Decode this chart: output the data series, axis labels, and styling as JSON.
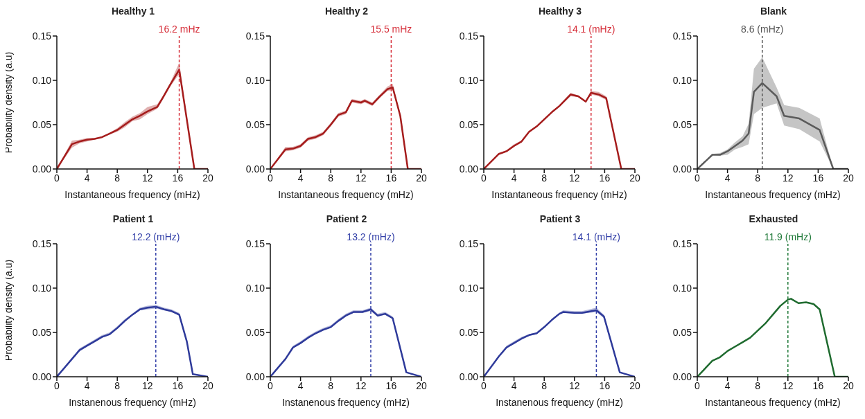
{
  "chart_data": [
    {
      "type": "line",
      "title": "Healthy 1",
      "xlabel": "Instantaneous frequency (mHz)",
      "ylabel": "Probability density (a.u)",
      "xlim": [
        0,
        20
      ],
      "ylim": [
        0,
        0.15
      ],
      "xticks": [
        0,
        4,
        8,
        12,
        16,
        20
      ],
      "yticks": [
        {
          "value": 0,
          "label": "0.00"
        },
        {
          "value": 0.05,
          "label": "0.05"
        },
        {
          "value": 0.1,
          "label": "0.10"
        },
        {
          "value": 0.15,
          "label": "0.15"
        }
      ],
      "grid": false,
      "marker": "none",
      "line_style": "solid",
      "x": [
        0,
        2,
        3,
        4,
        5,
        6,
        7,
        8,
        9,
        10,
        11,
        12,
        13.3,
        14,
        15,
        16.2,
        18.2,
        20
      ],
      "series": [
        {
          "color": "#a51c1c",
          "values": [
            0,
            0.028,
            0.031,
            0.033,
            0.034,
            0.036,
            0.04,
            0.044,
            0.05,
            0.056,
            0.06,
            0.065,
            0.07,
            0.08,
            0.095,
            0.112,
            0,
            0
          ],
          "lower": [
            0,
            0.024,
            0.029,
            0.031,
            0.033,
            0.036,
            0.039,
            0.042,
            0.047,
            0.054,
            0.056,
            0.062,
            0.068,
            0.078,
            0.093,
            0.107,
            0,
            0
          ],
          "upper": [
            0,
            0.032,
            0.033,
            0.035,
            0.035,
            0.036,
            0.041,
            0.046,
            0.053,
            0.059,
            0.063,
            0.07,
            0.073,
            0.082,
            0.097,
            0.12,
            0,
            0
          ]
        }
      ],
      "ref_lines": [
        {
          "axis": "x",
          "value": 16.2,
          "label": "16.2 mHz",
          "color": "#d62f3a",
          "line_style": "dashed"
        }
      ]
    },
    {
      "type": "line",
      "title": "Healthy 2",
      "xlabel": "Instantaneous frequency (mHz)",
      "xlim": [
        0,
        20
      ],
      "ylim": [
        0,
        0.15
      ],
      "xticks": [
        0,
        4,
        8,
        12,
        16,
        20
      ],
      "yticks": [
        {
          "value": 0,
          "label": "0.00"
        },
        {
          "value": 0.05,
          "label": "0.05"
        },
        {
          "value": 0.1,
          "label": "0.10"
        },
        {
          "value": 0.15,
          "label": "0.15"
        }
      ],
      "grid": false,
      "marker": "none",
      "line_style": "solid",
      "x": [
        0,
        2,
        3,
        4,
        5,
        6,
        7,
        8,
        9,
        10,
        10.8,
        12,
        12.5,
        13.5,
        14.5,
        15.5,
        16.2,
        17.2,
        18.2,
        20
      ],
      "series": [
        {
          "color": "#a51c1c",
          "values": [
            0,
            0.022,
            0.023,
            0.026,
            0.034,
            0.036,
            0.04,
            0.05,
            0.061,
            0.064,
            0.077,
            0.075,
            0.077,
            0.073,
            0.082,
            0.09,
            0.092,
            0.06,
            0,
            0
          ],
          "lower": [
            0,
            0.02,
            0.021,
            0.024,
            0.032,
            0.034,
            0.038,
            0.048,
            0.059,
            0.062,
            0.075,
            0.073,
            0.075,
            0.071,
            0.08,
            0.088,
            0.089,
            0.058,
            0,
            0
          ],
          "upper": [
            0,
            0.025,
            0.025,
            0.028,
            0.036,
            0.038,
            0.042,
            0.052,
            0.063,
            0.066,
            0.079,
            0.077,
            0.079,
            0.075,
            0.084,
            0.093,
            0.096,
            0.062,
            0,
            0
          ]
        }
      ],
      "ref_lines": [
        {
          "axis": "x",
          "value": 16,
          "label": "15.5 mHz",
          "color": "#d62f3a",
          "line_style": "dashed"
        }
      ]
    },
    {
      "type": "line",
      "title": "Healthy 3",
      "xlabel": "Instantaneous frequency (mHz)",
      "xlim": [
        0,
        20
      ],
      "ylim": [
        0,
        0.15
      ],
      "xticks": [
        0,
        4,
        8,
        12,
        16,
        20
      ],
      "yticks": [
        {
          "value": 0,
          "label": "0.00"
        },
        {
          "value": 0.05,
          "label": "0.05"
        },
        {
          "value": 0.1,
          "label": "0.10"
        },
        {
          "value": 0.15,
          "label": "0.15"
        }
      ],
      "grid": false,
      "marker": "none",
      "line_style": "solid",
      "x": [
        0,
        2,
        3,
        4,
        5,
        6,
        7,
        8,
        9,
        10,
        11.5,
        12.5,
        13.5,
        14.2,
        15.2,
        16.2,
        18.2,
        20
      ],
      "series": [
        {
          "color": "#a51c1c",
          "values": [
            0,
            0.017,
            0.02,
            0.026,
            0.031,
            0.042,
            0.048,
            0.056,
            0.064,
            0.071,
            0.084,
            0.082,
            0.076,
            0.086,
            0.084,
            0.08,
            0,
            0
          ],
          "lower": [
            0,
            0.016,
            0.019,
            0.025,
            0.03,
            0.041,
            0.047,
            0.055,
            0.063,
            0.07,
            0.082,
            0.081,
            0.075,
            0.084,
            0.082,
            0.078,
            0,
            0
          ],
          "upper": [
            0,
            0.018,
            0.021,
            0.028,
            0.032,
            0.043,
            0.049,
            0.057,
            0.065,
            0.072,
            0.086,
            0.083,
            0.077,
            0.088,
            0.087,
            0.082,
            0,
            0
          ]
        }
      ],
      "ref_lines": [
        {
          "axis": "x",
          "value": 14.2,
          "label": "14.1 (mHz)",
          "color": "#d62f3a",
          "line_style": "dashed"
        }
      ]
    },
    {
      "type": "line",
      "title": "Blank",
      "xlabel": "Instantaneous frequency (mHz)",
      "xlim": [
        0,
        20
      ],
      "ylim": [
        0,
        0.15
      ],
      "xticks": [
        0,
        4,
        8,
        12,
        16,
        20
      ],
      "yticks": [
        {
          "value": 0,
          "label": "0.00"
        },
        {
          "value": 0.05,
          "label": "0.05"
        },
        {
          "value": 0.1,
          "label": "0.10"
        },
        {
          "value": 0.15,
          "label": "0.15"
        }
      ],
      "grid": false,
      "marker": "none",
      "line_style": "solid",
      "x": [
        0,
        2,
        3,
        4,
        5,
        6,
        6.8,
        7.5,
        8.6,
        10.5,
        11.5,
        13.5,
        16.2,
        18,
        20
      ],
      "series": [
        {
          "color": "#5a5a5a",
          "values": [
            0,
            0.016,
            0.016,
            0.02,
            0.026,
            0.032,
            0.04,
            0.087,
            0.097,
            0.082,
            0.06,
            0.057,
            0.044,
            0,
            0
          ],
          "lower": [
            0,
            0.016,
            0.015,
            0.016,
            0.022,
            0.025,
            0.028,
            0.062,
            0.069,
            0.074,
            0.049,
            0.045,
            0.031,
            0,
            0
          ],
          "upper": [
            0,
            0.017,
            0.018,
            0.022,
            0.03,
            0.037,
            0.051,
            0.113,
            0.126,
            0.092,
            0.072,
            0.069,
            0.057,
            0,
            0
          ]
        }
      ],
      "ref_lines": [
        {
          "axis": "x",
          "value": 8.6,
          "label": "8.6 (mHz)",
          "color": "#555555",
          "line_style": "dashed"
        }
      ]
    },
    {
      "type": "line",
      "title": "Patient 1",
      "xlabel": "Instanenous frequency (mHz)",
      "ylabel": "Probability density (a.u)",
      "xlim": [
        0,
        20
      ],
      "ylim": [
        0,
        0.15
      ],
      "xticks": [
        0,
        4,
        8,
        12,
        16,
        20
      ],
      "yticks": [
        {
          "value": 0,
          "label": "0.00"
        },
        {
          "value": 0.05,
          "label": "0.05"
        },
        {
          "value": 0.1,
          "label": "0.10"
        },
        {
          "value": 0.15,
          "label": "0.15"
        }
      ],
      "grid": false,
      "marker": "none",
      "line_style": "solid",
      "x": [
        0,
        2,
        3,
        4,
        5,
        6,
        7,
        8,
        9,
        10,
        11,
        12,
        13.1,
        14.2,
        15.2,
        16.2,
        17.2,
        18,
        20
      ],
      "series": [
        {
          "color": "#2e3a9a",
          "values": [
            0,
            0.02,
            0.03,
            0.035,
            0.04,
            0.045,
            0.048,
            0.055,
            0.063,
            0.07,
            0.076,
            0.078,
            0.079,
            0.076,
            0.074,
            0.07,
            0.04,
            0.003,
            0
          ],
          "lower": [
            0,
            0.019,
            0.029,
            0.034,
            0.039,
            0.044,
            0.047,
            0.054,
            0.062,
            0.069,
            0.075,
            0.076,
            0.077,
            0.075,
            0.073,
            0.069,
            0.039,
            0.003,
            0
          ],
          "upper": [
            0,
            0.021,
            0.032,
            0.037,
            0.042,
            0.047,
            0.05,
            0.057,
            0.065,
            0.071,
            0.078,
            0.08,
            0.081,
            0.078,
            0.076,
            0.072,
            0.041,
            0.003,
            0
          ]
        }
      ],
      "ref_lines": [
        {
          "axis": "x",
          "value": 13.1,
          "label": "12.2 (mHz)",
          "color": "#3340a8",
          "line_style": "dashed"
        }
      ]
    },
    {
      "type": "line",
      "title": "Patient 2",
      "xlabel": "Instanenous frequency (mHz)",
      "xlim": [
        0,
        20
      ],
      "ylim": [
        0,
        0.15
      ],
      "xticks": [
        0,
        4,
        8,
        12,
        16,
        20
      ],
      "yticks": [
        {
          "value": 0,
          "label": "0.00"
        },
        {
          "value": 0.05,
          "label": "0.05"
        },
        {
          "value": 0.1,
          "label": "0.10"
        },
        {
          "value": 0.15,
          "label": "0.15"
        }
      ],
      "grid": false,
      "marker": "none",
      "line_style": "solid",
      "x": [
        0,
        2,
        3,
        4,
        5,
        6,
        7,
        8,
        9,
        10,
        11,
        12.2,
        13.3,
        14.2,
        15.2,
        16.2,
        18,
        20
      ],
      "series": [
        {
          "color": "#2e3a9a",
          "values": [
            0,
            0.02,
            0.033,
            0.038,
            0.044,
            0.049,
            0.053,
            0.056,
            0.063,
            0.069,
            0.073,
            0.073,
            0.076,
            0.069,
            0.071,
            0.066,
            0.005,
            0
          ],
          "lower": [
            0,
            0.019,
            0.032,
            0.037,
            0.043,
            0.048,
            0.052,
            0.055,
            0.062,
            0.068,
            0.072,
            0.072,
            0.074,
            0.068,
            0.07,
            0.065,
            0.005,
            0
          ],
          "upper": [
            0,
            0.021,
            0.035,
            0.04,
            0.046,
            0.051,
            0.055,
            0.058,
            0.065,
            0.071,
            0.075,
            0.075,
            0.078,
            0.071,
            0.073,
            0.068,
            0.005,
            0
          ]
        }
      ],
      "ref_lines": [
        {
          "axis": "x",
          "value": 13.3,
          "label": "13.2 (mHz)",
          "color": "#3340a8",
          "line_style": "dashed"
        }
      ]
    },
    {
      "type": "line",
      "title": "Patient 3",
      "xlabel": "Instanenous frequency (mHz)",
      "xlim": [
        0,
        20
      ],
      "ylim": [
        0,
        0.15
      ],
      "xticks": [
        0,
        4,
        8,
        12,
        16,
        20
      ],
      "yticks": [
        {
          "value": 0,
          "label": "0.00"
        },
        {
          "value": 0.05,
          "label": "0.05"
        },
        {
          "value": 0.1,
          "label": "0.10"
        },
        {
          "value": 0.15,
          "label": "0.15"
        }
      ],
      "grid": false,
      "marker": "none",
      "line_style": "solid",
      "x": [
        0,
        2,
        3,
        4,
        5,
        6,
        7,
        8,
        9,
        10,
        10.5,
        12,
        13,
        14.9,
        15.9,
        17,
        18,
        20
      ],
      "series": [
        {
          "color": "#2e3a9a",
          "values": [
            0,
            0.023,
            0.033,
            0.038,
            0.043,
            0.047,
            0.049,
            0.056,
            0.064,
            0.071,
            0.073,
            0.072,
            0.072,
            0.075,
            0.068,
            0.035,
            0.005,
            0
          ],
          "lower": [
            0,
            0.022,
            0.032,
            0.037,
            0.042,
            0.046,
            0.048,
            0.055,
            0.063,
            0.07,
            0.072,
            0.071,
            0.071,
            0.073,
            0.066,
            0.034,
            0.005,
            0
          ],
          "upper": [
            0,
            0.024,
            0.035,
            0.04,
            0.045,
            0.048,
            0.05,
            0.057,
            0.065,
            0.072,
            0.075,
            0.074,
            0.074,
            0.078,
            0.07,
            0.036,
            0.005,
            0
          ]
        }
      ],
      "ref_lines": [
        {
          "axis": "x",
          "value": 14.9,
          "label": "14.1 (mHz)",
          "color": "#3340a8",
          "line_style": "dashed"
        }
      ]
    },
    {
      "type": "line",
      "title": "Exhausted",
      "xlabel": "Instantaneous frequency (mHz)",
      "xlim": [
        0,
        20
      ],
      "ylim": [
        0,
        0.15
      ],
      "xticks": [
        0,
        4,
        8,
        12,
        16,
        20
      ],
      "yticks": [
        {
          "value": 0,
          "label": "0.00"
        },
        {
          "value": 0.05,
          "label": "0.05"
        },
        {
          "value": 0.1,
          "label": "0.10"
        },
        {
          "value": 0.15,
          "label": "0.15"
        }
      ],
      "grid": false,
      "marker": "none",
      "line_style": "solid",
      "x": [
        0,
        2,
        3,
        4,
        5,
        6,
        7,
        8,
        9,
        10,
        11,
        12,
        12.4,
        13.4,
        14.4,
        15.4,
        16.2,
        18.2,
        20
      ],
      "series": [
        {
          "color": "#1f6b2f",
          "values": [
            0,
            0.018,
            0.022,
            0.029,
            0.034,
            0.039,
            0.044,
            0.052,
            0.06,
            0.07,
            0.08,
            0.087,
            0.088,
            0.083,
            0.084,
            0.082,
            0.076,
            0,
            0
          ]
        }
      ],
      "ref_lines": [
        {
          "axis": "x",
          "value": 12,
          "label": "11.9 (mHz)",
          "color": "#217a3a",
          "line_style": "dashed"
        }
      ]
    }
  ]
}
